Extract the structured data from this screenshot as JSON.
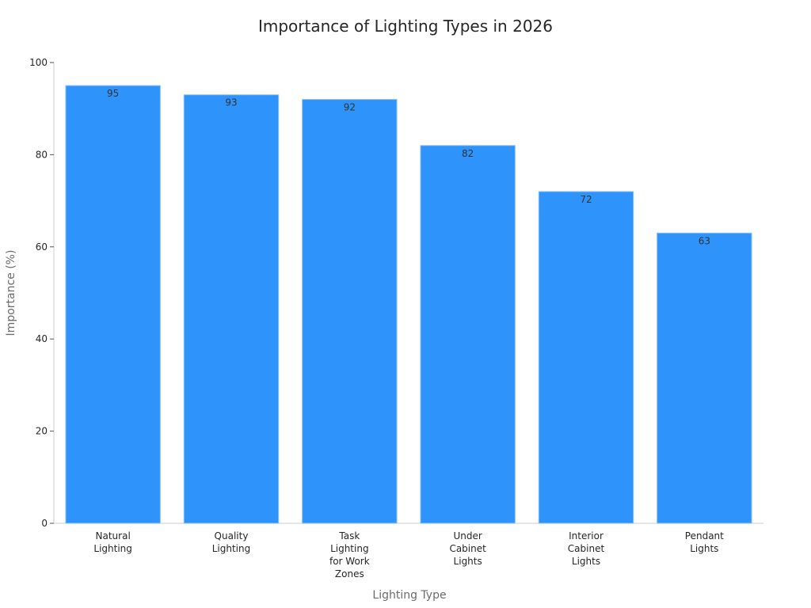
{
  "chart_data": {
    "type": "bar",
    "title": "Importance of Lighting Types in 2026",
    "x_label": "Lighting Type",
    "y_label": "Importance (%)",
    "categories": [
      "Natural Lighting",
      "Quality Lighting",
      "Task Lighting for Work Zones",
      "Under Cabinet Lights",
      "Interior Cabinet Lights",
      "Pendant Lights"
    ],
    "values": [
      95,
      93,
      92,
      82,
      72,
      63
    ],
    "color": "#2e93fa",
    "ylim": [
      0,
      100
    ],
    "yticks": [
      0,
      20,
      40,
      60,
      80,
      100
    ],
    "grid": false
  }
}
